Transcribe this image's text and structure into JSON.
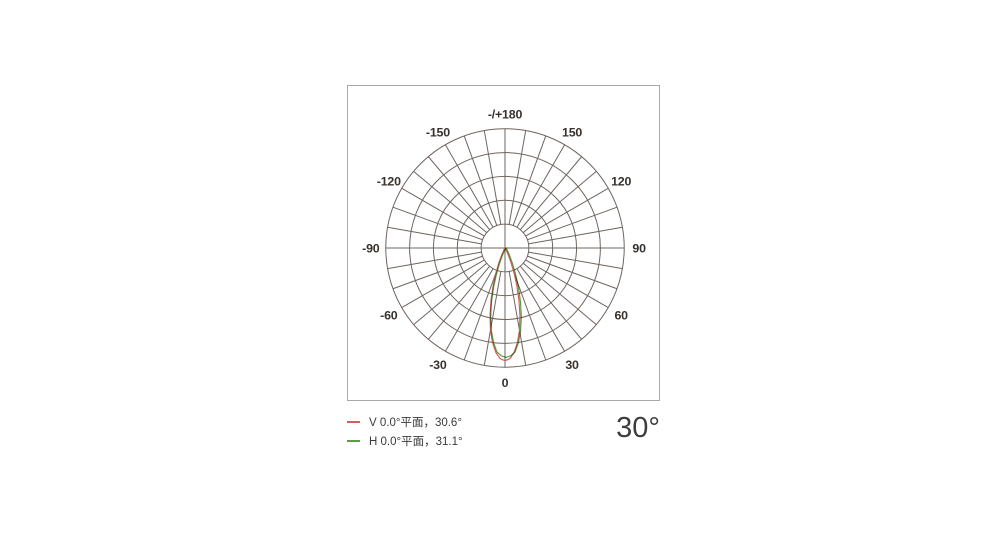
{
  "page": {
    "background": "#ffffff"
  },
  "chart_data": {
    "type": "line",
    "projection": "polar",
    "title": "30°",
    "angle_unit": "degrees",
    "zero_direction": "bottom",
    "grid": {
      "ring_ratios": [
        0.2,
        0.4,
        0.6,
        0.8,
        1.0
      ],
      "spoke_step_deg": 10,
      "inner_hole_ratio": 0.2,
      "grid_color": "#6e645f",
      "frame_color": "#a9a9a9",
      "label_color": "#37322e"
    },
    "angle_ticks": [
      {
        "deg": 0,
        "label": "0"
      },
      {
        "deg": 30,
        "label": "30"
      },
      {
        "deg": 60,
        "label": "60"
      },
      {
        "deg": 90,
        "label": "90"
      },
      {
        "deg": 120,
        "label": "120"
      },
      {
        "deg": 150,
        "label": "150"
      },
      {
        "deg": 180,
        "label": "-/+180"
      },
      {
        "deg": -150,
        "label": "-150"
      },
      {
        "deg": -120,
        "label": "-120"
      },
      {
        "deg": -90,
        "label": "-90"
      },
      {
        "deg": -60,
        "label": "-60"
      },
      {
        "deg": -30,
        "label": "-30"
      }
    ],
    "series": [
      {
        "name": "V 0.0°平面",
        "beam_angle": "30.6°",
        "color": "#d06358",
        "points_deg_ratio": [
          [
            -40,
            0
          ],
          [
            -35,
            0.004
          ],
          [
            -30,
            0.015
          ],
          [
            -27.5,
            0.035
          ],
          [
            -25,
            0.07
          ],
          [
            -22.5,
            0.13
          ],
          [
            -20,
            0.22
          ],
          [
            -17.5,
            0.33
          ],
          [
            -15,
            0.45
          ],
          [
            -12.5,
            0.58
          ],
          [
            -10,
            0.7
          ],
          [
            -7.5,
            0.8
          ],
          [
            -5,
            0.88
          ],
          [
            -2.5,
            0.93
          ],
          [
            0,
            0.945
          ],
          [
            2.5,
            0.93
          ],
          [
            5,
            0.88
          ],
          [
            7.5,
            0.8
          ],
          [
            10,
            0.7
          ],
          [
            12.5,
            0.58
          ],
          [
            15,
            0.45
          ],
          [
            17.5,
            0.33
          ],
          [
            20,
            0.22
          ],
          [
            22.5,
            0.13
          ],
          [
            25,
            0.07
          ],
          [
            27.5,
            0.035
          ],
          [
            30,
            0.015
          ],
          [
            35,
            0.004
          ],
          [
            40,
            0
          ]
        ]
      },
      {
        "name": "H 0.0°平面",
        "beam_angle": "31.1°",
        "color": "#5a9e48",
        "points_deg_ratio": [
          [
            -40,
            0
          ],
          [
            -35,
            0.005
          ],
          [
            -30,
            0.018
          ],
          [
            -27.5,
            0.04
          ],
          [
            -25,
            0.08
          ],
          [
            -22.5,
            0.145
          ],
          [
            -20,
            0.235
          ],
          [
            -17.5,
            0.35
          ],
          [
            -15,
            0.47
          ],
          [
            -12.5,
            0.595
          ],
          [
            -10,
            0.705
          ],
          [
            -7.5,
            0.8
          ],
          [
            -5,
            0.875
          ],
          [
            -2.5,
            0.905
          ],
          [
            0,
            0.918
          ],
          [
            2.5,
            0.905
          ],
          [
            5,
            0.875
          ],
          [
            7.5,
            0.8
          ],
          [
            10,
            0.705
          ],
          [
            12.5,
            0.595
          ],
          [
            15,
            0.47
          ],
          [
            17.5,
            0.35
          ],
          [
            20,
            0.235
          ],
          [
            22.5,
            0.145
          ],
          [
            25,
            0.08
          ],
          [
            27.5,
            0.04
          ],
          [
            30,
            0.018
          ],
          [
            35,
            0.005
          ],
          [
            40,
            0
          ]
        ]
      }
    ],
    "legend": [
      {
        "swatch_color": "#d06358",
        "label": "V 0.0°平面，30.6°"
      },
      {
        "swatch_color": "#5a9e48",
        "label": "H 0.0°平面，31.1°"
      }
    ],
    "corner_label": "30°"
  }
}
